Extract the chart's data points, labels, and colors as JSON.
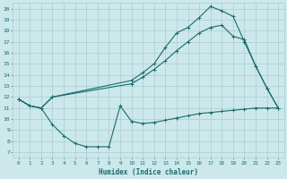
{
  "xlabel": "Humidex (Indice chaleur)",
  "bg_color": "#cce8ea",
  "grid_color": "#aacdd0",
  "line_color": "#1a6b6b",
  "xlim": [
    -0.5,
    23.5
  ],
  "ylim": [
    6.5,
    20.5
  ],
  "yticks": [
    7,
    8,
    9,
    10,
    11,
    12,
    13,
    14,
    15,
    16,
    17,
    18,
    19,
    20
  ],
  "xticks": [
    0,
    1,
    2,
    3,
    4,
    5,
    6,
    7,
    8,
    9,
    10,
    11,
    12,
    13,
    14,
    15,
    16,
    17,
    18,
    19,
    20,
    21,
    22,
    23
  ],
  "s1_x": [
    0,
    1,
    2,
    3,
    4,
    5,
    6,
    7,
    8,
    9,
    10,
    11,
    12,
    13,
    14,
    15,
    16,
    17,
    18,
    19,
    20,
    21,
    22,
    23
  ],
  "s1_y": [
    11.8,
    11.2,
    11.0,
    9.5,
    8.5,
    7.8,
    7.5,
    7.5,
    7.5,
    11.2,
    9.8,
    9.6,
    9.7,
    9.9,
    10.1,
    10.3,
    10.5,
    10.6,
    10.7,
    10.8,
    10.9,
    11.0,
    11.0,
    11.0
  ],
  "s2_x": [
    0,
    1,
    2,
    3,
    10,
    11,
    12,
    13,
    14,
    15,
    16,
    17,
    18,
    19,
    20,
    21,
    22,
    23
  ],
  "s2_y": [
    11.8,
    11.2,
    11.0,
    12.0,
    13.2,
    13.8,
    14.5,
    15.3,
    16.2,
    17.0,
    17.8,
    18.3,
    18.5,
    17.5,
    17.2,
    14.8,
    12.8,
    11.0
  ],
  "s3_x": [
    0,
    1,
    2,
    3,
    10,
    11,
    12,
    13,
    14,
    15,
    16,
    17,
    18,
    19,
    20,
    21,
    22,
    23
  ],
  "s3_y": [
    11.8,
    11.2,
    11.0,
    12.0,
    13.5,
    14.2,
    15.0,
    16.5,
    17.8,
    18.3,
    19.2,
    20.2,
    19.8,
    19.3,
    17.0,
    14.8,
    12.8,
    11.0
  ]
}
